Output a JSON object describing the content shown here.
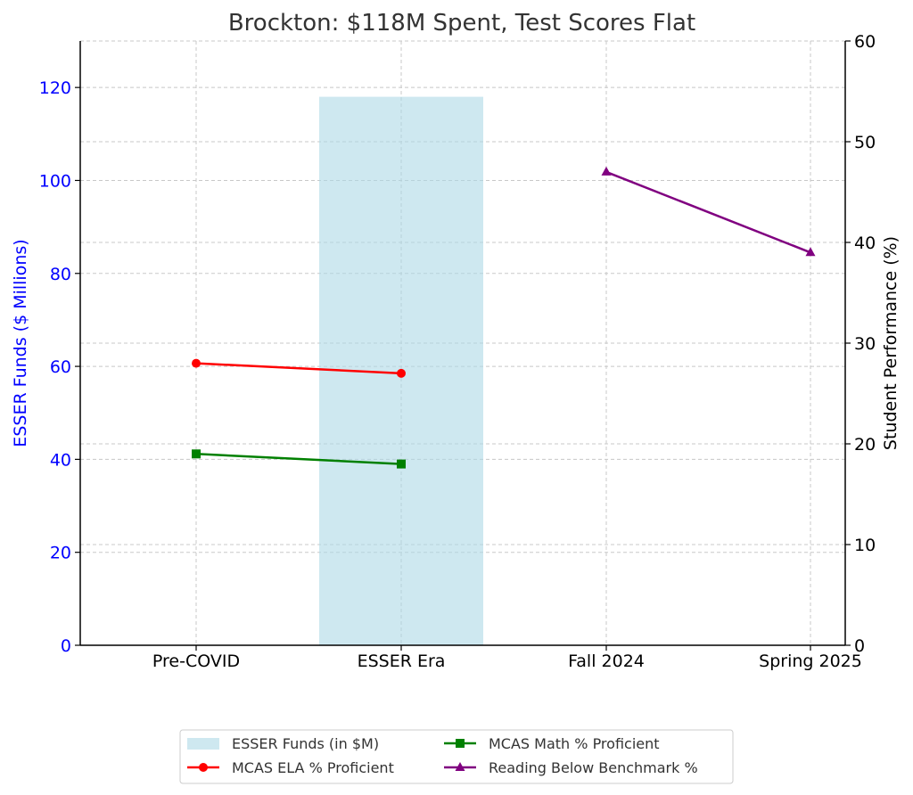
{
  "chart_data": {
    "type": "bar+line",
    "title": "Brockton: $118M Spent, Test Scores Flat",
    "categories": [
      "Pre-COVID",
      "ESSER Era",
      "Fall 2024",
      "Spring 2025"
    ],
    "left_axis": {
      "label": "ESSER Funds ($ Millions)",
      "color": "#0000ff",
      "range": [
        0,
        130
      ],
      "ticks": [
        0,
        20,
        40,
        60,
        80,
        100,
        120
      ]
    },
    "right_axis": {
      "label": "Student Performance (%)",
      "color": "#000000",
      "range": [
        0,
        60
      ],
      "ticks": [
        0,
        10,
        20,
        30,
        40,
        50,
        60
      ]
    },
    "bars": {
      "name": "ESSER Funds (in $M)",
      "color": "#add8e6",
      "values": [
        null,
        118,
        null,
        null
      ]
    },
    "series": [
      {
        "name": "MCAS ELA % Proficient",
        "color": "#ff0000",
        "marker": "circle",
        "values": [
          28,
          27,
          null,
          null
        ]
      },
      {
        "name": "MCAS Math % Proficient",
        "color": "#008000",
        "marker": "square",
        "values": [
          19,
          18,
          null,
          null
        ]
      },
      {
        "name": "Reading Below Benchmark %",
        "color": "#800080",
        "marker": "triangle",
        "values": [
          null,
          null,
          47,
          39
        ]
      }
    ],
    "grid": true,
    "legend_position": "bottom-center"
  }
}
